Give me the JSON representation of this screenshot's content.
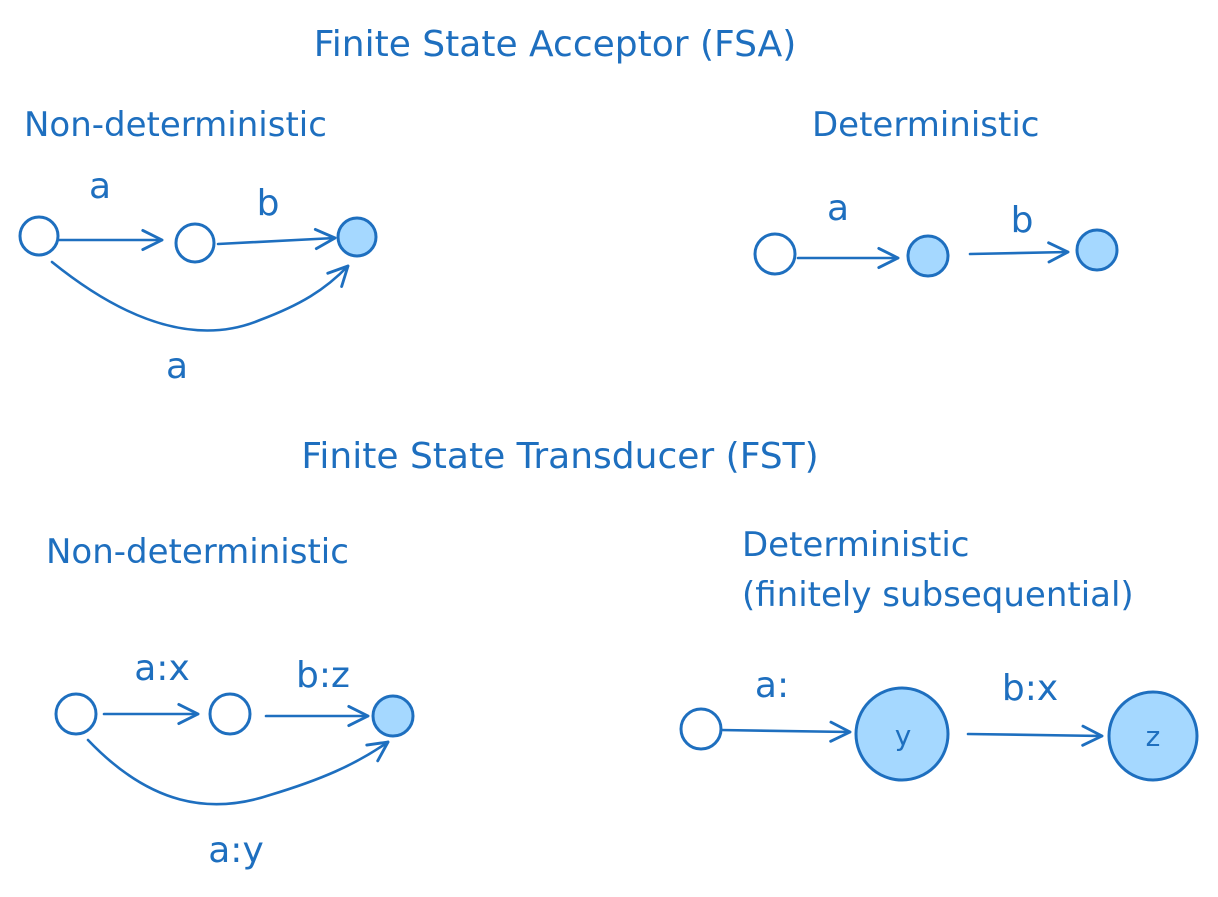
{
  "fsa": {
    "title": "Finite State Acceptor (FSA)",
    "nondet": {
      "heading": "Non-deterministic",
      "edges": [
        "a",
        "b",
        "a"
      ]
    },
    "det": {
      "heading": "Deterministic",
      "edges": [
        "a",
        "b"
      ]
    }
  },
  "fst": {
    "title": "Finite State Transducer (FST)",
    "nondet": {
      "heading": "Non-deterministic",
      "edges": [
        "a:x",
        "b:z",
        "a:y"
      ]
    },
    "det": {
      "heading_line1": "Deterministic",
      "heading_line2": "(finitely subsequential)",
      "edges": [
        "a:",
        "b:x"
      ],
      "state_outputs": [
        "y",
        "z"
      ]
    }
  },
  "colors": {
    "ink": "#1e6fbf",
    "final_fill": "#a5d8ff",
    "start_fill": "#ffffff"
  }
}
